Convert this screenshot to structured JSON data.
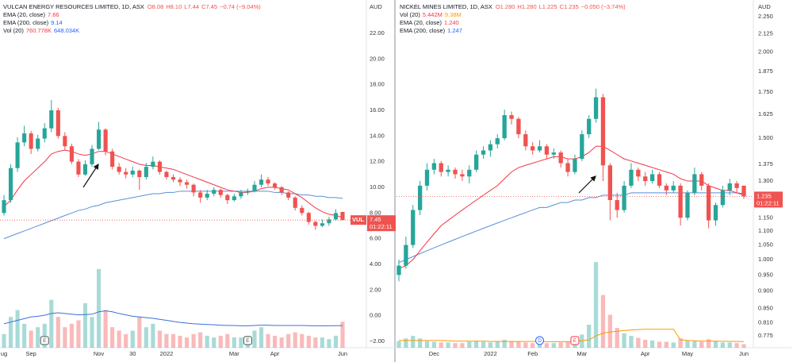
{
  "chart_data": [
    {
      "type": "candlestick",
      "title": "VULCAN ENERGY RESOURCES LIMITED, 1D, ASX",
      "quote": [
        "O8.08",
        "H8.10",
        "L7.44",
        "C7.45",
        "−0.74 (−9.04%)"
      ],
      "indicators": [
        {
          "name": "EMA (20, close)",
          "values": [
            "7.66"
          ],
          "colors": [
            "#f23645"
          ]
        },
        {
          "name": "EMA (200, close)",
          "values": [
            "9.14"
          ],
          "colors": [
            "#2962ff"
          ]
        },
        {
          "name": "Vol (20)",
          "values": [
            "760.778K",
            "648.034K"
          ],
          "colors": [
            "#f23645",
            "#2962ff"
          ]
        }
      ],
      "axis_unit": "AUD",
      "log_scale": false,
      "ylim": [
        -2.5,
        24.6
      ],
      "yticks": [
        {
          "value": 22,
          "label": "22.00"
        },
        {
          "value": 20,
          "label": "20.00"
        },
        {
          "value": 18,
          "label": "18.00"
        },
        {
          "value": 16,
          "label": "16.00"
        },
        {
          "value": 14,
          "label": "14.00"
        },
        {
          "value": 12,
          "label": "12.00"
        },
        {
          "value": 10,
          "label": "10.00"
        },
        {
          "value": 8,
          "label": "8.00"
        },
        {
          "value": 6,
          "label": "6.00"
        },
        {
          "value": 4,
          "label": "4.00"
        },
        {
          "value": 2,
          "label": "2.00"
        },
        {
          "value": 0,
          "label": "0.00"
        },
        {
          "value": -2,
          "label": "−2.00"
        }
      ],
      "volume_lim": [
        0,
        2600
      ],
      "up_color": "#26a69a",
      "down_color": "#ef5350",
      "ema_colors": [
        "#f23645",
        "#5b8fd9"
      ],
      "volume_ma_color": "#3d6fd8",
      "candles": [
        [
          8.0,
          9.4,
          7.8,
          9.0
        ],
        [
          9.0,
          11.8,
          8.8,
          11.5
        ],
        [
          11.5,
          13.9,
          11.2,
          13.5
        ],
        [
          13.5,
          14.8,
          13.2,
          14.2
        ],
        [
          14.2,
          14.4,
          12.6,
          13.0
        ],
        [
          13.0,
          14.1,
          12.8,
          13.8
        ],
        [
          13.8,
          15.0,
          13.5,
          14.6
        ],
        [
          14.6,
          16.8,
          14.3,
          16.0
        ],
        [
          16.0,
          16.2,
          13.8,
          14.0
        ],
        [
          14.0,
          14.3,
          12.9,
          13.2
        ],
        [
          13.2,
          13.4,
          11.8,
          12.0
        ],
        [
          12.0,
          12.2,
          10.8,
          11.0
        ],
        [
          11.0,
          12.1,
          10.9,
          11.8
        ],
        [
          11.8,
          13.3,
          11.6,
          13.0
        ],
        [
          13.0,
          15.1,
          12.9,
          14.5
        ],
        [
          14.5,
          14.6,
          12.5,
          12.8
        ],
        [
          12.8,
          13.0,
          11.4,
          11.6
        ],
        [
          11.6,
          11.9,
          11.0,
          11.2
        ],
        [
          11.2,
          11.5,
          10.7,
          11.0
        ],
        [
          11.0,
          11.6,
          10.8,
          11.3
        ],
        [
          11.3,
          11.4,
          9.8,
          10.8
        ],
        [
          10.8,
          11.9,
          10.6,
          11.6
        ],
        [
          11.6,
          12.4,
          11.4,
          12.0
        ],
        [
          12.0,
          12.1,
          11.0,
          11.2
        ],
        [
          11.2,
          11.3,
          10.6,
          10.8
        ],
        [
          10.8,
          11.0,
          10.4,
          10.6
        ],
        [
          10.6,
          10.8,
          10.1,
          10.4
        ],
        [
          10.4,
          10.6,
          9.9,
          10.2
        ],
        [
          10.2,
          10.3,
          9.3,
          9.6
        ],
        [
          9.6,
          9.8,
          8.8,
          9.2
        ],
        [
          9.2,
          9.8,
          9.0,
          9.5
        ],
        [
          9.5,
          10.0,
          9.3,
          9.8
        ],
        [
          9.8,
          9.9,
          9.2,
          9.4
        ],
        [
          9.4,
          9.5,
          8.7,
          9.0
        ],
        [
          9.0,
          9.5,
          8.9,
          9.3
        ],
        [
          9.3,
          9.8,
          9.1,
          9.6
        ],
        [
          9.6,
          9.9,
          9.4,
          9.7
        ],
        [
          9.7,
          10.5,
          9.6,
          10.2
        ],
        [
          10.2,
          11.0,
          10.0,
          10.6
        ],
        [
          10.6,
          10.8,
          10.1,
          10.3
        ],
        [
          10.3,
          10.4,
          9.8,
          10.0
        ],
        [
          10.0,
          10.1,
          9.4,
          9.6
        ],
        [
          9.6,
          9.7,
          9.0,
          9.2
        ],
        [
          9.2,
          9.3,
          8.2,
          8.4
        ],
        [
          8.4,
          8.6,
          7.8,
          8.0
        ],
        [
          8.0,
          8.1,
          7.1,
          7.3
        ],
        [
          7.3,
          7.4,
          6.7,
          7.0
        ],
        [
          7.0,
          7.5,
          6.9,
          7.2
        ],
        [
          7.2,
          7.7,
          7.0,
          7.5
        ],
        [
          7.5,
          8.3,
          7.4,
          8.0
        ],
        [
          8.08,
          8.1,
          7.44,
          7.45
        ]
      ],
      "ema20": [
        8.5,
        9.0,
        9.8,
        10.5,
        11.0,
        11.5,
        12.0,
        12.6,
        12.8,
        12.9,
        12.8,
        12.6,
        12.5,
        12.6,
        12.8,
        12.8,
        12.6,
        12.4,
        12.2,
        12.0,
        11.8,
        11.7,
        11.7,
        11.6,
        11.5,
        11.4,
        11.2,
        11.0,
        10.8,
        10.6,
        10.4,
        10.2,
        10.0,
        9.8,
        9.7,
        9.6,
        9.6,
        9.7,
        9.9,
        10.0,
        10.0,
        9.9,
        9.8,
        9.5,
        9.2,
        8.8,
        8.4,
        8.1,
        7.9,
        7.8,
        7.66
      ],
      "ema200": [
        6.0,
        6.2,
        6.4,
        6.6,
        6.8,
        7.0,
        7.2,
        7.4,
        7.6,
        7.8,
        8.0,
        8.2,
        8.3,
        8.5,
        8.6,
        8.8,
        8.9,
        9.0,
        9.1,
        9.2,
        9.3,
        9.4,
        9.5,
        9.5,
        9.6,
        9.6,
        9.7,
        9.7,
        9.7,
        9.7,
        9.7,
        9.7,
        9.7,
        9.7,
        9.7,
        9.7,
        9.7,
        9.7,
        9.7,
        9.7,
        9.6,
        9.6,
        9.5,
        9.5,
        9.4,
        9.4,
        9.3,
        9.3,
        9.2,
        9.2,
        9.14
      ],
      "volume": [
        400,
        900,
        1100,
        700,
        500,
        600,
        700,
        1400,
        900,
        600,
        700,
        800,
        1300,
        900,
        2300,
        1100,
        600,
        500,
        400,
        500,
        900,
        600,
        700,
        500,
        400,
        400,
        350,
        300,
        400,
        450,
        350,
        300,
        350,
        400,
        300,
        300,
        350,
        500,
        600,
        400,
        350,
        300,
        400,
        450,
        400,
        350,
        300,
        300,
        250,
        350,
        760
      ],
      "volume_ma": [
        700,
        750,
        800,
        850,
        900,
        920,
        950,
        1000,
        1020,
        1000,
        980,
        960,
        970,
        980,
        1050,
        1080,
        1050,
        1000,
        960,
        920,
        900,
        880,
        860,
        830,
        800,
        770,
        740,
        720,
        700,
        690,
        680,
        670,
        660,
        650,
        650,
        640,
        640,
        650,
        660,
        660,
        650,
        650,
        650,
        650,
        650,
        645,
        640,
        640,
        640,
        645,
        648
      ],
      "x_labels": [
        "ug",
        "Sep",
        "Nov",
        "30",
        "2022",
        "Mar",
        "Apr",
        "Jun"
      ],
      "x_label_index": [
        0,
        4,
        14,
        19,
        24,
        34,
        40,
        50
      ],
      "events": [
        {
          "label": "E",
          "index": 6,
          "color": "#555555"
        },
        {
          "label": "E",
          "index": 36,
          "color": "#555555"
        }
      ],
      "price_tag": {
        "symbol": "VUL",
        "value": 7.45,
        "countdown": "01:22:11"
      }
    },
    {
      "type": "candlestick",
      "title": "NICKEL MINES LIMITED, 1D, ASX",
      "quote": [
        "O1.280",
        "H1.280",
        "L1.225",
        "C1.235",
        "−0.050 (−3.74%)"
      ],
      "indicators": [
        {
          "name": "Vol (20)",
          "values": [
            "5.442M",
            "9.38M"
          ],
          "colors": [
            "#f23645",
            "#ff9800"
          ]
        },
        {
          "name": "EMA (20, close)",
          "values": [
            "1.240"
          ],
          "colors": [
            "#f23645"
          ]
        },
        {
          "name": "EMA (200, close)",
          "values": [
            "1.247"
          ],
          "colors": [
            "#2962ff"
          ]
        }
      ],
      "axis_unit": "AUD",
      "log_scale": true,
      "ylim": [
        0.745,
        2.38
      ],
      "yticks": [
        {
          "value": 2.25,
          "label": "2.250"
        },
        {
          "value": 2.125,
          "label": "2.125"
        },
        {
          "value": 2,
          "label": "2.000"
        },
        {
          "value": 1.875,
          "label": "1.875"
        },
        {
          "value": 1.75,
          "label": "1.750"
        },
        {
          "value": 1.625,
          "label": "1.625"
        },
        {
          "value": 1.5,
          "label": "1.500"
        },
        {
          "value": 1.375,
          "label": "1.375"
        },
        {
          "value": 1.3,
          "label": "1.300"
        },
        {
          "value": 1.15,
          "label": "1.150"
        },
        {
          "value": 1.1,
          "label": "1.100"
        },
        {
          "value": 1.05,
          "label": "1.050"
        },
        {
          "value": 1,
          "label": "1.000"
        },
        {
          "value": 0.95,
          "label": "0.950"
        },
        {
          "value": 0.9,
          "label": "0.900"
        },
        {
          "value": 0.85,
          "label": "0.850"
        },
        {
          "value": 0.81,
          "label": "0.810"
        },
        {
          "value": 0.775,
          "label": "0.775"
        }
      ],
      "volume_lim": [
        0,
        135
      ],
      "up_color": "#26a69a",
      "down_color": "#ef5350",
      "ema_colors": [
        "#f23645",
        "#5b8fd9"
      ],
      "volume_ma_color": "#ff9800",
      "candles": [
        [
          0.95,
          1.0,
          0.93,
          0.98
        ],
        [
          0.98,
          1.08,
          0.97,
          1.05
        ],
        [
          1.05,
          1.2,
          1.04,
          1.18
        ],
        [
          1.18,
          1.3,
          1.16,
          1.28
        ],
        [
          1.28,
          1.38,
          1.26,
          1.35
        ],
        [
          1.35,
          1.4,
          1.33,
          1.38
        ],
        [
          1.38,
          1.39,
          1.32,
          1.34
        ],
        [
          1.34,
          1.37,
          1.32,
          1.35
        ],
        [
          1.35,
          1.36,
          1.31,
          1.33
        ],
        [
          1.33,
          1.35,
          1.3,
          1.32
        ],
        [
          1.32,
          1.37,
          1.29,
          1.35
        ],
        [
          1.35,
          1.44,
          1.34,
          1.42
        ],
        [
          1.42,
          1.46,
          1.4,
          1.44
        ],
        [
          1.44,
          1.49,
          1.41,
          1.47
        ],
        [
          1.47,
          1.52,
          1.45,
          1.5
        ],
        [
          1.5,
          1.65,
          1.49,
          1.62
        ],
        [
          1.62,
          1.64,
          1.57,
          1.6
        ],
        [
          1.6,
          1.61,
          1.5,
          1.52
        ],
        [
          1.52,
          1.54,
          1.44,
          1.46
        ],
        [
          1.46,
          1.48,
          1.42,
          1.44
        ],
        [
          1.44,
          1.49,
          1.43,
          1.46
        ],
        [
          1.46,
          1.47,
          1.4,
          1.42
        ],
        [
          1.42,
          1.45,
          1.4,
          1.43
        ],
        [
          1.43,
          1.44,
          1.36,
          1.38
        ],
        [
          1.38,
          1.4,
          1.32,
          1.34
        ],
        [
          1.34,
          1.42,
          1.33,
          1.4
        ],
        [
          1.4,
          1.54,
          1.39,
          1.52
        ],
        [
          1.52,
          1.62,
          1.5,
          1.6
        ],
        [
          1.6,
          1.77,
          1.58,
          1.72
        ],
        [
          1.72,
          1.74,
          1.3,
          1.37
        ],
        [
          1.37,
          1.38,
          1.14,
          1.22
        ],
        [
          1.22,
          1.25,
          1.15,
          1.18
        ],
        [
          1.18,
          1.3,
          1.17,
          1.28
        ],
        [
          1.28,
          1.38,
          1.27,
          1.35
        ],
        [
          1.35,
          1.36,
          1.3,
          1.32
        ],
        [
          1.32,
          1.34,
          1.28,
          1.3
        ],
        [
          1.3,
          1.35,
          1.29,
          1.33
        ],
        [
          1.33,
          1.34,
          1.27,
          1.28
        ],
        [
          1.28,
          1.29,
          1.24,
          1.26
        ],
        [
          1.26,
          1.3,
          1.25,
          1.28
        ],
        [
          1.28,
          1.29,
          1.12,
          1.15
        ],
        [
          1.15,
          1.26,
          1.14,
          1.25
        ],
        [
          1.25,
          1.36,
          1.24,
          1.33
        ],
        [
          1.33,
          1.34,
          1.26,
          1.28
        ],
        [
          1.28,
          1.29,
          1.11,
          1.14
        ],
        [
          1.14,
          1.21,
          1.12,
          1.2
        ],
        [
          1.2,
          1.28,
          1.19,
          1.26
        ],
        [
          1.26,
          1.31,
          1.24,
          1.29
        ],
        [
          1.29,
          1.3,
          1.25,
          1.27
        ],
        [
          1.28,
          1.28,
          1.225,
          1.235
        ]
      ],
      "ema20": [
        0.97,
        0.98,
        1.0,
        1.03,
        1.06,
        1.09,
        1.12,
        1.14,
        1.16,
        1.18,
        1.2,
        1.22,
        1.24,
        1.26,
        1.28,
        1.31,
        1.34,
        1.36,
        1.37,
        1.38,
        1.39,
        1.4,
        1.41,
        1.41,
        1.4,
        1.4,
        1.41,
        1.43,
        1.46,
        1.46,
        1.44,
        1.42,
        1.4,
        1.39,
        1.38,
        1.37,
        1.36,
        1.35,
        1.34,
        1.33,
        1.31,
        1.3,
        1.3,
        1.3,
        1.28,
        1.27,
        1.26,
        1.26,
        1.25,
        1.24
      ],
      "ema200": [
        0.99,
        1.0,
        1.01,
        1.02,
        1.03,
        1.04,
        1.05,
        1.06,
        1.07,
        1.08,
        1.09,
        1.1,
        1.11,
        1.12,
        1.13,
        1.14,
        1.15,
        1.16,
        1.17,
        1.18,
        1.19,
        1.19,
        1.2,
        1.21,
        1.21,
        1.22,
        1.22,
        1.23,
        1.23,
        1.24,
        1.24,
        1.24,
        1.24,
        1.25,
        1.25,
        1.25,
        1.25,
        1.25,
        1.25,
        1.25,
        1.25,
        1.25,
        1.25,
        1.25,
        1.25,
        1.25,
        1.25,
        1.25,
        1.25,
        1.247
      ],
      "volume": [
        10,
        14,
        18,
        14,
        10,
        9,
        8,
        8,
        7,
        7,
        9,
        10,
        9,
        8,
        9,
        12,
        10,
        9,
        8,
        7,
        7,
        7,
        7,
        8,
        9,
        12,
        20,
        35,
        130,
        80,
        50,
        30,
        22,
        18,
        15,
        12,
        11,
        9,
        9,
        8,
        14,
        11,
        10,
        9,
        13,
        10,
        8,
        8,
        7,
        5.442
      ],
      "volume_ma": [
        11,
        11,
        11,
        11,
        11,
        11,
        11,
        10.5,
        10,
        10,
        10,
        10,
        10,
        9.5,
        9.5,
        9.5,
        9.5,
        9.5,
        9.5,
        9.5,
        9.3,
        9.2,
        9.1,
        9,
        9,
        9.5,
        10.5,
        12,
        18,
        22,
        24,
        25,
        26,
        27,
        27.5,
        28,
        28,
        28,
        28,
        28,
        12,
        11,
        10.5,
        10,
        10,
        10,
        9.8,
        9.6,
        9.5,
        9.38
      ],
      "x_labels": [
        "Dec",
        "2022",
        "Feb",
        "Mar",
        "Apr",
        "May",
        "Jun"
      ],
      "x_label_index": [
        5,
        13,
        19,
        26,
        35,
        41,
        49
      ],
      "events": [
        {
          "label": "D",
          "index": 20,
          "color": "#2962ff"
        },
        {
          "label": "E",
          "index": 25,
          "color": "#f23645"
        }
      ],
      "price_tag": {
        "value": 1.235,
        "countdown": "01:22:11"
      }
    }
  ]
}
